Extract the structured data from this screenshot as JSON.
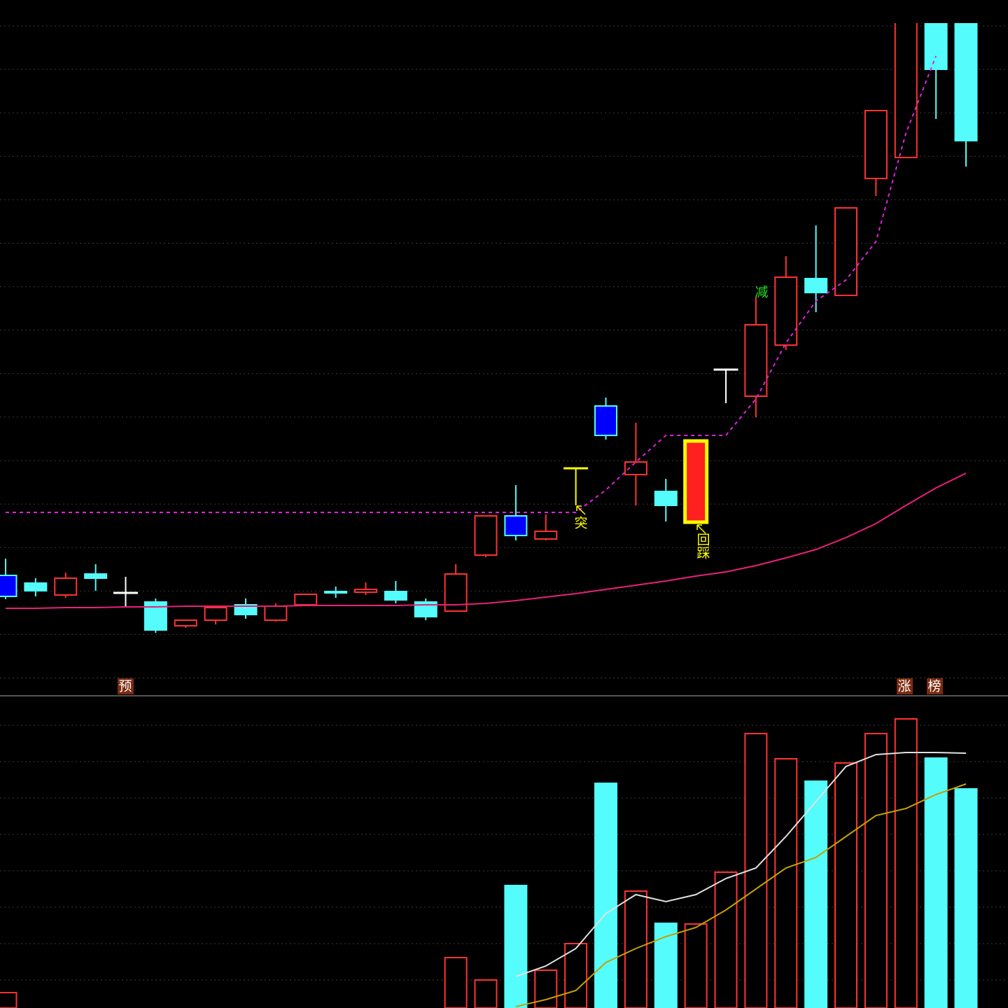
{
  "chart_data": [
    {
      "type": "candlestick",
      "categories": [
        null,
        null,
        null,
        null,
        null,
        null,
        null,
        null,
        null,
        null,
        null,
        null,
        null,
        null,
        null,
        null,
        null,
        null,
        null,
        null,
        null,
        null,
        null,
        null,
        null,
        null,
        null,
        null,
        null,
        null,
        null,
        null,
        null
      ],
      "open": [
        168,
        157,
        140,
        170,
        143,
        130,
        96,
        104,
        126,
        104,
        126,
        145,
        144,
        145,
        130,
        117,
        197,
        253,
        220,
        321,
        410,
        312,
        288,
        244,
        462,
        424,
        497,
        592,
        568,
        735,
        765,
        1010,
        1010
      ],
      "high": [
        192,
        164,
        172,
        184,
        166,
        135,
        104,
        124,
        135,
        128,
        141,
        152,
        158,
        160,
        135,
        184,
        253,
        297,
        255,
        321,
        422,
        386,
        306,
        360,
        462,
        566,
        624,
        668,
        693,
        832,
        1040,
        1010,
        1010
      ],
      "low": [
        134,
        138,
        136,
        146,
        124,
        86,
        93,
        98,
        106,
        102,
        126,
        136,
        140,
        128,
        104,
        116,
        194,
        218,
        218,
        268,
        362,
        268,
        245,
        244,
        414,
        394,
        490,
        544,
        568,
        710,
        765,
        820,
        752
      ],
      "close": [
        138,
        146,
        164,
        164,
        143,
        90,
        104,
        122,
        112,
        124,
        141,
        143,
        148,
        133,
        109,
        170,
        253,
        225,
        231,
        321,
        368,
        330,
        268,
        360,
        462,
        526,
        594,
        572,
        693,
        832,
        1040,
        891,
        789
      ],
      "fill_colors": [
        "#0000ff",
        "#54fcfc",
        "#000000",
        "#54fcfc",
        "#ffffff",
        "#54fcfc",
        "#000000",
        "#000000",
        "#54fcfc",
        "#000000",
        "#000000",
        "#54fcfc",
        "#000000",
        "#54fcfc",
        "#54fcfc",
        "#000000",
        "#000000",
        "#0000ff",
        "#000000",
        "#ffff00",
        "#0000ff",
        "#000000",
        "#54fcfc",
        "#ff2020",
        "#ffffff",
        "#000000",
        "#000000",
        "#54fcfc",
        "#000000",
        "#000000",
        "#000000",
        "#54fcfc",
        "#54fcfc"
      ],
      "edge_colors": [
        "#54fcfc",
        "#54fcfc",
        "#ff3232",
        "#54fcfc",
        "#ffffff",
        "#54fcfc",
        "#ff3232",
        "#ff3232",
        "#54fcfc",
        "#ff3232",
        "#ff3232",
        "#54fcfc",
        "#ff3232",
        "#54fcfc",
        "#54fcfc",
        "#ff3232",
        "#ff3232",
        "#54fcfc",
        "#ff3232",
        "#ffff00",
        "#54fcfc",
        "#ff3232",
        "#54fcfc",
        "#ffff00",
        "#ffffff",
        "#ff3232",
        "#ff3232",
        "#54fcfc",
        "#ff3232",
        "#ff3232",
        "#ff3232",
        "#54fcfc",
        "#54fcfc"
      ],
      "series": [
        {
          "color": "#e8207a",
          "style": "solid",
          "values": [
            121,
            121,
            122,
            122,
            123,
            123,
            124,
            124,
            124,
            124,
            125,
            125,
            125,
            125,
            126,
            126,
            128,
            132,
            137,
            142,
            148,
            154,
            160,
            167,
            173,
            182,
            193,
            205,
            222,
            242,
            268,
            293,
            314
          ]
        },
        {
          "color": "#e020e0",
          "style": "dashed",
          "values": [
            258,
            258,
            258,
            258,
            258,
            258,
            258,
            258,
            258,
            258,
            258,
            258,
            258,
            258,
            258,
            258,
            258,
            258,
            258,
            258,
            290,
            330,
            368,
            368,
            368,
            420,
            500,
            560,
            590,
            645,
            800,
            910,
            null
          ]
        }
      ],
      "ylim": [
        0,
        957
      ],
      "grid": true,
      "annotations": [
        "预",
        "涨",
        "榜",
        "突",
        "回踩",
        "减"
      ]
    },
    {
      "type": "bar",
      "values": [
        22,
        null,
        null,
        null,
        null,
        null,
        null,
        null,
        null,
        null,
        null,
        null,
        null,
        null,
        null,
        72,
        40,
        175,
        54,
        92,
        321,
        167,
        121,
        120,
        194,
        392,
        356,
        324,
        350,
        392,
        413,
        357,
        313
      ],
      "fill_colors": [
        "#000000",
        null,
        null,
        null,
        null,
        null,
        null,
        null,
        null,
        null,
        null,
        null,
        null,
        null,
        null,
        "#000000",
        "#000000",
        "#54fcfc",
        "#000000",
        "#000000",
        "#54fcfc",
        "#000000",
        "#54fcfc",
        "#000000",
        "#000000",
        "#000000",
        "#000000",
        "#54fcfc",
        "#000000",
        "#000000",
        "#000000",
        "#54fcfc",
        "#54fcfc"
      ],
      "edge_colors": [
        "#ff3232",
        null,
        null,
        null,
        null,
        null,
        null,
        null,
        null,
        null,
        null,
        null,
        null,
        null,
        null,
        "#ff3232",
        "#ff3232",
        "#54fcfc",
        "#ff3232",
        "#ff3232",
        "#54fcfc",
        "#ff3232",
        "#54fcfc",
        "#ff3232",
        "#ff3232",
        "#ff3232",
        "#ff3232",
        "#54fcfc",
        "#ff3232",
        "#ff3232",
        "#ff3232",
        "#54fcfc",
        "#54fcfc"
      ],
      "series": [
        {
          "color": "#e0e0e0",
          "style": "solid",
          "values": [
            null,
            null,
            null,
            null,
            null,
            null,
            null,
            null,
            null,
            null,
            null,
            null,
            null,
            null,
            null,
            null,
            null,
            45,
            60,
            85,
            135,
            162,
            152,
            162,
            185,
            200,
            245,
            295,
            345,
            362,
            365,
            365,
            364
          ]
        },
        {
          "color": "#c8a000",
          "style": "solid",
          "values": [
            null,
            null,
            null,
            null,
            null,
            null,
            null,
            null,
            null,
            null,
            null,
            null,
            null,
            null,
            null,
            null,
            null,
            2,
            12,
            25,
            65,
            85,
            102,
            115,
            140,
            170,
            200,
            215,
            245,
            275,
            285,
            305,
            320
          ]
        }
      ],
      "ylim": [
        0,
        440
      ],
      "grid": true
    }
  ]
}
